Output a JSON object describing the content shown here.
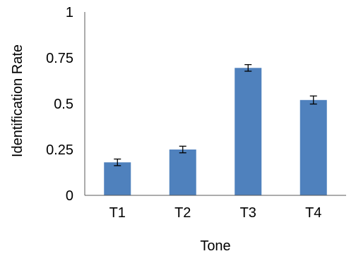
{
  "chart_data": {
    "type": "bar",
    "categories": [
      "T1",
      "T2",
      "T3",
      "T4"
    ],
    "values": [
      0.18,
      0.25,
      0.695,
      0.52
    ],
    "error": [
      0.018,
      0.018,
      0.018,
      0.022
    ],
    "title": "",
    "xlabel": "Tone",
    "ylabel": "Identification Rate",
    "ylim": [
      0,
      1
    ],
    "yticks": [
      0,
      0.25,
      0.5,
      0.75,
      1
    ],
    "ytick_labels": [
      "0",
      "0.25",
      "0.5",
      "0.75",
      "1"
    ],
    "grid": false,
    "legend": "none",
    "bar_color": "#4F81BD"
  }
}
